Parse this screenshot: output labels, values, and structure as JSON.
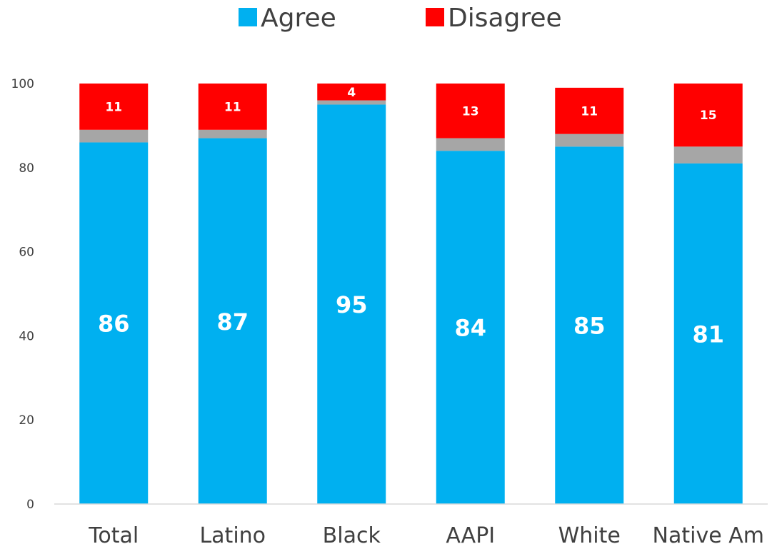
{
  "chart_data": {
    "type": "bar",
    "stacked": true,
    "categories": [
      "Total",
      "Latino",
      "Black",
      "AAPI",
      "White",
      "Native Am"
    ],
    "series": [
      {
        "name": "Agree",
        "values": [
          86,
          87,
          95,
          84,
          85,
          81
        ],
        "color": "#00B0F0"
      },
      {
        "values": [
          3,
          2,
          1,
          3,
          3,
          4
        ],
        "color": "#A6A6A6"
      },
      {
        "name": "Disagree",
        "values": [
          11,
          11,
          4,
          13,
          11,
          15
        ],
        "color": "#FF0000"
      }
    ],
    "ylim": [
      0,
      100
    ],
    "yticks": [
      0,
      20,
      40,
      60,
      80,
      100
    ],
    "grid": false,
    "legend": "top-center"
  }
}
